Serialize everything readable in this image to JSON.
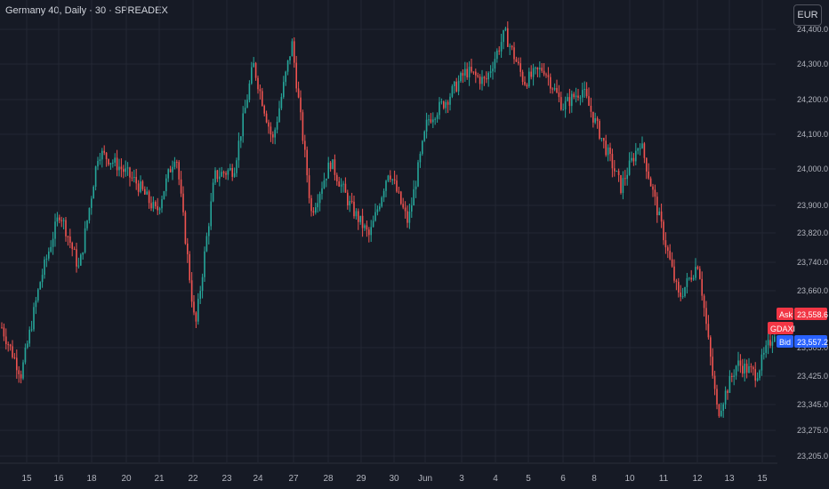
{
  "header": {
    "title": "Germany 40, Daily · 30 · SPREADEX",
    "currency": "EUR"
  },
  "colors": {
    "background": "#161a25",
    "grid": "#232733",
    "up": "#26a69a",
    "down": "#ef5350",
    "ask": "#f23645",
    "bid": "#2962ff",
    "symbol_tag": "#f23645"
  },
  "tags": {
    "ask_label": "Ask",
    "ask_price": "23,558.6",
    "symbol_label": "GDAXI",
    "bid_label": "Bid",
    "bid_price": "23,557.2"
  },
  "chart_data": {
    "type": "candlestick",
    "timeframe": "30",
    "x_tick_labels": [
      "15",
      "16",
      "18",
      "20",
      "21",
      "22",
      "23",
      "24",
      "27",
      "28",
      "29",
      "30",
      "Jun",
      "3",
      "4",
      "5",
      "6",
      "8",
      "10",
      "11",
      "12",
      "13",
      "15"
    ],
    "y_tick_labels": [
      "24,400.0",
      "24,300.0",
      "24,200.0",
      "24,100.0",
      "24,000.0",
      "23,900.0",
      "23,820.0",
      "23,740.0",
      "23,660.0",
      "23,505.0",
      "23,425.0",
      "23,345.0",
      "23,275.0",
      "23,205.0"
    ],
    "ylim": [
      23190,
      24420
    ],
    "grid": true,
    "approx_price_path": [
      {
        "x_label": "15",
        "close": 23560
      },
      {
        "x_label": "15",
        "close": 23430
      },
      {
        "x_label": "16",
        "close": 23690
      },
      {
        "x_label": "16",
        "close": 23880
      },
      {
        "x_label": "18",
        "close": 23720
      },
      {
        "x_label": "20",
        "close": 24050
      },
      {
        "x_label": "21",
        "close": 24010
      },
      {
        "x_label": "22",
        "close": 23960
      },
      {
        "x_label": "22",
        "close": 23880
      },
      {
        "x_label": "23",
        "close": 24050
      },
      {
        "x_label": "24",
        "close": 23555
      },
      {
        "x_label": "24",
        "close": 23980
      },
      {
        "x_label": "27",
        "close": 24000
      },
      {
        "x_label": "28",
        "close": 24300
      },
      {
        "x_label": "28",
        "close": 24080
      },
      {
        "x_label": "29",
        "close": 24360
      },
      {
        "x_label": "30",
        "close": 23880
      },
      {
        "x_label": "30",
        "close": 24020
      },
      {
        "x_label": "Jun",
        "close": 23900
      },
      {
        "x_label": "Jun",
        "close": 23810
      },
      {
        "x_label": "3",
        "close": 24000
      },
      {
        "x_label": "3",
        "close": 23850
      },
      {
        "x_label": "4",
        "close": 24140
      },
      {
        "x_label": "4",
        "close": 24200
      },
      {
        "x_label": "5",
        "close": 24280
      },
      {
        "x_label": "5",
        "close": 24250
      },
      {
        "x_label": "6",
        "close": 24390
      },
      {
        "x_label": "6",
        "close": 24250
      },
      {
        "x_label": "8",
        "close": 24290
      },
      {
        "x_label": "8",
        "close": 24180
      },
      {
        "x_label": "10",
        "close": 24230
      },
      {
        "x_label": "10",
        "close": 24090
      },
      {
        "x_label": "11",
        "close": 23950
      },
      {
        "x_label": "11",
        "close": 24080
      },
      {
        "x_label": "12",
        "close": 23860
      },
      {
        "x_label": "12",
        "close": 23640
      },
      {
        "x_label": "13",
        "close": 23740
      },
      {
        "x_label": "13",
        "close": 23320
      },
      {
        "x_label": "13",
        "close": 23460
      },
      {
        "x_label": "15",
        "close": 23430
      },
      {
        "x_label": "15",
        "close": 23558
      }
    ]
  }
}
